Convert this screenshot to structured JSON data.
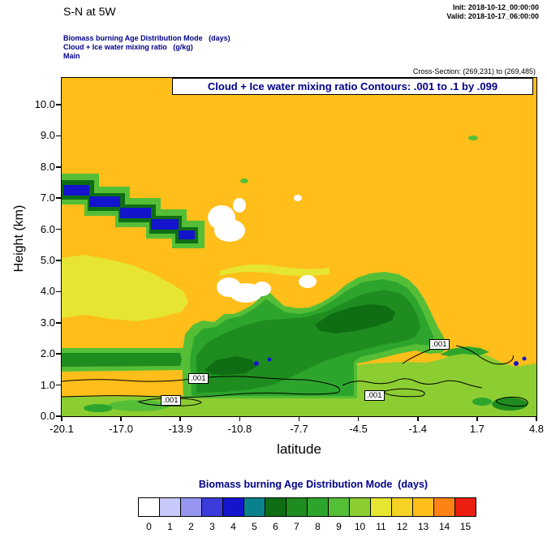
{
  "header": {
    "title": "S-N at 5W",
    "init": "Init: 2018-10-12_00:00:00",
    "valid": "Valid: 2018-10-17_06:00:00",
    "subtitle1": "Biomass burning Age Distribution Mode   (days)",
    "subtitle2": "Cloud + Ice water mixing ratio   (g/kg)",
    "subtitle3": "Main",
    "cross_section": "Cross-Section: (269,231) to (269,485)"
  },
  "plot": {
    "inner_title": "Cloud + Ice water mixing ratio Contours: .001 to .1 by .099",
    "xlabel": "latitude",
    "ylabel": "Height (km)",
    "x_tick_labels": [
      "-20.1",
      "-17.0",
      "-13.9",
      "-10.8",
      "-7.7",
      "-4.5",
      "-1.4",
      "1.7",
      "4.8"
    ],
    "y_tick_labels": [
      "0.0",
      "1.0",
      "2.0",
      "3.0",
      "4.0",
      "5.0",
      "6.0",
      "7.0",
      "8.0",
      "9.0",
      "10.0"
    ],
    "contour_label": ".001"
  },
  "legend": {
    "title": "Biomass burning Age Distribution Mode  (days)",
    "values": [
      "0",
      "1",
      "2",
      "3",
      "4",
      "5",
      "6",
      "7",
      "8",
      "9",
      "10",
      "11",
      "12",
      "13",
      "14",
      "15"
    ],
    "colors": [
      "#FFFFFF",
      "#C8C8FA",
      "#9696F0",
      "#3C3CDC",
      "#1414CD",
      "#0A828C",
      "#0F6E14",
      "#1E8C1E",
      "#2DA52D",
      "#55BE37",
      "#8CCD32",
      "#E6E632",
      "#F5D223",
      "#FFBE19",
      "#FF8214",
      "#EB1E0F"
    ]
  },
  "chart_data": {
    "type": "heatmap",
    "title": "Cloud + Ice water mixing ratio Contours: .001 to .1 by .099",
    "xlabel": "latitude",
    "ylabel": "Height (km)",
    "xlim": [
      -20.1,
      4.8
    ],
    "ylim": [
      0,
      10.9
    ],
    "x_ticks": [
      -20.1,
      -17.0,
      -13.9,
      -10.8,
      -7.7,
      -4.5,
      -1.4,
      1.7,
      4.8
    ],
    "y_ticks": [
      0,
      1,
      2,
      3,
      4,
      5,
      6,
      7,
      8,
      9,
      10
    ],
    "fill_variable": {
      "name": "Biomass burning Age Distribution Mode",
      "units": "days",
      "levels": [
        0,
        1,
        2,
        3,
        4,
        5,
        6,
        7,
        8,
        9,
        10,
        11,
        12,
        13,
        14,
        15
      ],
      "colors": [
        "#FFFFFF",
        "#C8C8FA",
        "#9696F0",
        "#3C3CDC",
        "#1414CD",
        "#0A828C",
        "#0F6E14",
        "#1E8C1E",
        "#2DA52D",
        "#55BE37",
        "#8CCD32",
        "#E6E632",
        "#F5D223",
        "#FFBE19",
        "#FF8214",
        "#EB1E0F"
      ],
      "legend_position": "bottom"
    },
    "contour_variable": {
      "name": "Cloud + Ice water mixing ratio",
      "units": "g/kg",
      "min": 0.001,
      "max": 0.1,
      "interval": 0.099,
      "labeled_value": 0.001
    },
    "grid_lats": [
      -20.1,
      -17.0,
      -13.9,
      -10.8,
      -7.7,
      -4.5,
      -1.4,
      1.7,
      4.8
    ],
    "grid_heights_km": [
      0.5,
      1.5,
      2.5,
      3.5,
      4.5,
      5.5,
      6.5,
      7.5,
      8.5,
      9.5
    ],
    "age_mode_days": [
      [
        10,
        9,
        9,
        8,
        9,
        10,
        10,
        10,
        10
      ],
      [
        8,
        8,
        8,
        7,
        7,
        8,
        9,
        10,
        10
      ],
      [
        13,
        13,
        9,
        7,
        7,
        7,
        8,
        13,
        13
      ],
      [
        11,
        11,
        11,
        7,
        8,
        8,
        8,
        13,
        13
      ],
      [
        11,
        11,
        13,
        0,
        13,
        9,
        9,
        13,
        13
      ],
      [
        13,
        13,
        4,
        0,
        13,
        13,
        13,
        13,
        13
      ],
      [
        13,
        4,
        13,
        13,
        13,
        13,
        13,
        13,
        13
      ],
      [
        4,
        13,
        13,
        13,
        13,
        13,
        13,
        13,
        13
      ],
      [
        13,
        13,
        13,
        13,
        13,
        13,
        13,
        13,
        13
      ],
      [
        13,
        13,
        13,
        13,
        13,
        13,
        13,
        13,
        13
      ]
    ]
  }
}
